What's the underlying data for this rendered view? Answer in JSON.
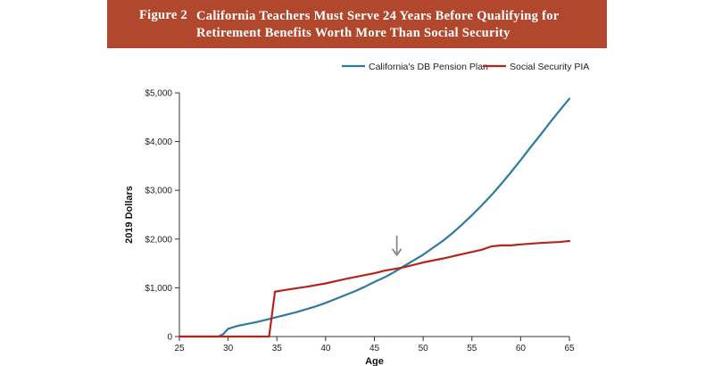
{
  "banner": {
    "figure_label": "Figure 2",
    "title_lines": [
      "California Teachers Must Serve 24 Years Before Qualifying for",
      "Retirement Benefits Worth More Than Social Security"
    ]
  },
  "colors": {
    "banner_bg": "#b1482e",
    "pension_line": "#2e7aa0",
    "social_security_line": "#b4251c",
    "arrow": "#8a8a8a"
  },
  "chart_data": {
    "type": "line",
    "title": "California Teachers Must Serve 24 Years Before Qualifying for Retirement Benefits Worth More Than Social Security",
    "xlabel": "Age",
    "ylabel": "2019 Dollars",
    "xlim": [
      25,
      65
    ],
    "ylim": [
      0,
      5000
    ],
    "x_ticks": [
      25,
      30,
      35,
      40,
      45,
      50,
      55,
      60,
      65
    ],
    "x_tick_labels": [
      "25",
      "30",
      "35",
      "40",
      "45",
      "50",
      "55",
      "60",
      "65"
    ],
    "y_ticks": [
      0,
      1000,
      2000,
      3000,
      4000,
      5000
    ],
    "y_tick_labels": [
      "0",
      "$1,000",
      "$2,000",
      "$3,000",
      "$4,000",
      "$5,000"
    ],
    "grid": false,
    "legend_position": "top-right",
    "annotation": {
      "type": "arrow",
      "x": 47.5,
      "y": 1450,
      "points_to": "crossover"
    },
    "series": [
      {
        "name": "California's DB Pension Plan",
        "color": "#2e7aa0",
        "points": [
          [
            25,
            0
          ],
          [
            29,
            0
          ],
          [
            29.5,
            50
          ],
          [
            30,
            160
          ],
          [
            31,
            220
          ],
          [
            32,
            260
          ],
          [
            33,
            300
          ],
          [
            34,
            350
          ],
          [
            35,
            400
          ],
          [
            36,
            450
          ],
          [
            37,
            500
          ],
          [
            38,
            560
          ],
          [
            39,
            620
          ],
          [
            40,
            690
          ],
          [
            41,
            770
          ],
          [
            42,
            850
          ],
          [
            43,
            930
          ],
          [
            44,
            1020
          ],
          [
            45,
            1120
          ],
          [
            46,
            1210
          ],
          [
            47,
            1320
          ],
          [
            48,
            1440
          ],
          [
            49,
            1560
          ],
          [
            50,
            1680
          ],
          [
            51,
            1820
          ],
          [
            52,
            1960
          ],
          [
            53,
            2120
          ],
          [
            54,
            2300
          ],
          [
            55,
            2490
          ],
          [
            56,
            2690
          ],
          [
            57,
            2900
          ],
          [
            58,
            3130
          ],
          [
            59,
            3370
          ],
          [
            60,
            3620
          ],
          [
            61,
            3880
          ],
          [
            62,
            4130
          ],
          [
            63,
            4390
          ],
          [
            64,
            4640
          ],
          [
            65,
            4880
          ]
        ]
      },
      {
        "name": "Social Security PIA",
        "color": "#b4251c",
        "points": [
          [
            25,
            0
          ],
          [
            34.2,
            0
          ],
          [
            34.8,
            920
          ],
          [
            36,
            960
          ],
          [
            38,
            1020
          ],
          [
            40,
            1090
          ],
          [
            42,
            1180
          ],
          [
            44,
            1260
          ],
          [
            45,
            1300
          ],
          [
            46,
            1350
          ],
          [
            48,
            1420
          ],
          [
            50,
            1520
          ],
          [
            52,
            1600
          ],
          [
            54,
            1690
          ],
          [
            56,
            1780
          ],
          [
            57,
            1850
          ],
          [
            58,
            1870
          ],
          [
            59,
            1870
          ],
          [
            60,
            1890
          ],
          [
            62,
            1920
          ],
          [
            64,
            1940
          ],
          [
            65,
            1960
          ]
        ]
      }
    ]
  }
}
